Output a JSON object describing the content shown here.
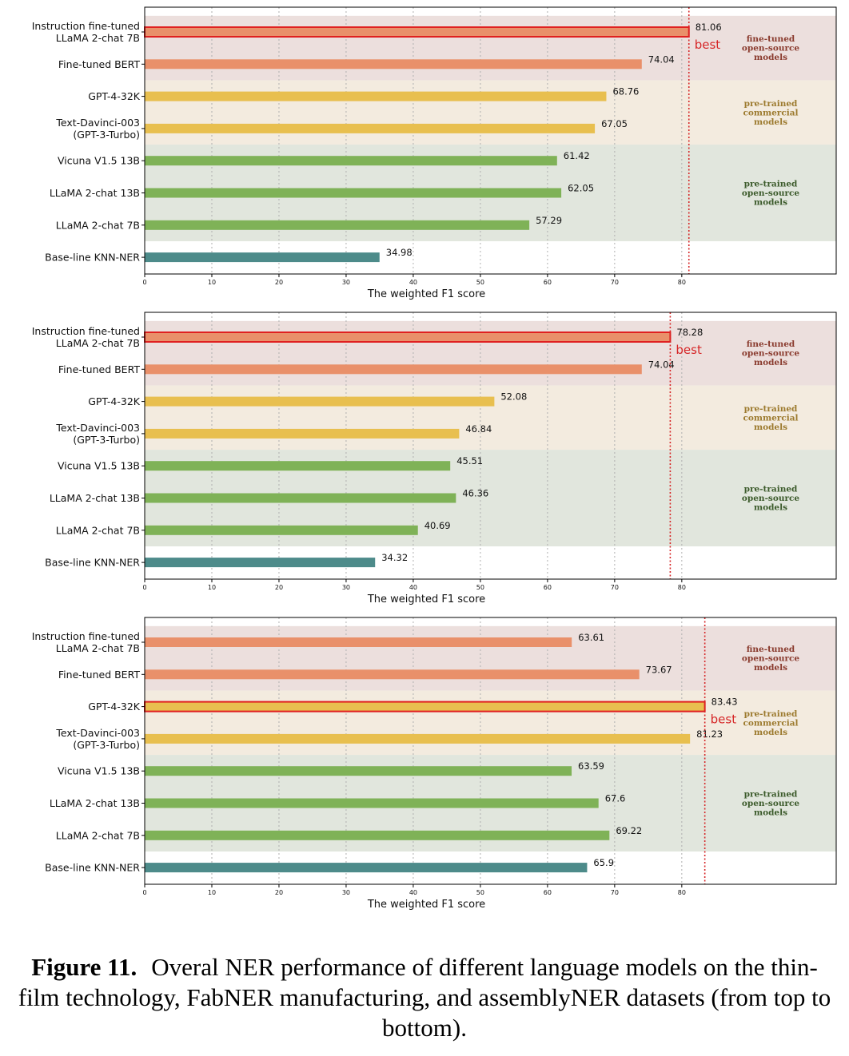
{
  "colors": {
    "fine_tuned": "#e9906a",
    "commercial": "#e8bf4f",
    "open_source": "#7fb257",
    "baseline": "#4d8b8a",
    "best_outline": "#e02020",
    "best_line": "#d62728",
    "band_fine_tuned": "#ecdfdd",
    "band_commercial": "#f3ebdf",
    "band_open_source": "#e1e6dd",
    "group_text_fine_tuned": "#8a3b2e",
    "group_text_commercial": "#9c7a2e",
    "group_text_open_source": "#3b5a2a"
  },
  "chart_data": [
    {
      "type": "bar",
      "orientation": "horizontal",
      "categories": [
        "Instruction fine-tuned\nLLaMA 2-chat 7B",
        "Fine-tuned BERT",
        "GPT-4-32K",
        "Text-Davinci-003\n(GPT-3-Turbo)",
        "Vicuna V1.5 13B",
        "LLaMA 2-chat 13B",
        "LLaMA 2-chat 7B",
        "Base-line KNN-NER"
      ],
      "groups": [
        "fine_tuned",
        "fine_tuned",
        "commercial",
        "commercial",
        "open_source",
        "open_source",
        "open_source",
        "baseline"
      ],
      "values": [
        81.06,
        74.04,
        68.76,
        67.05,
        61.42,
        62.05,
        57.29,
        34.98
      ],
      "value_labels": [
        "81.06",
        "74.04",
        "68.76",
        "67.05",
        "61.42",
        "62.05",
        "57.29",
        "34.98"
      ],
      "best_index": 0,
      "best_label": "best",
      "xlabel": "The weighted F1 score",
      "xlim": [
        0,
        103
      ],
      "xticks": [
        0,
        10,
        20,
        30,
        40,
        50,
        60,
        70,
        80
      ],
      "grid": "x-dotted",
      "group_labels": [
        {
          "group": "fine_tuned",
          "text": "fine-tuned\nopen-source\nmodels"
        },
        {
          "group": "commercial",
          "text": "pre-trained\ncommercial\nmodels"
        },
        {
          "group": "open_source",
          "text": "pre-trained\nopen-source\nmodels"
        }
      ]
    },
    {
      "type": "bar",
      "orientation": "horizontal",
      "categories": [
        "Instruction fine-tuned\nLLaMA 2-chat 7B",
        "Fine-tuned BERT",
        "GPT-4-32K",
        "Text-Davinci-003\n(GPT-3-Turbo)",
        "Vicuna V1.5 13B",
        "LLaMA 2-chat 13B",
        "LLaMA 2-chat 7B",
        "Base-line KNN-NER"
      ],
      "groups": [
        "fine_tuned",
        "fine_tuned",
        "commercial",
        "commercial",
        "open_source",
        "open_source",
        "open_source",
        "baseline"
      ],
      "values": [
        78.28,
        74.04,
        52.08,
        46.84,
        45.51,
        46.36,
        40.69,
        34.32
      ],
      "value_labels": [
        "78.28",
        "74.04",
        "52.08",
        "46.84",
        "45.51",
        "46.36",
        "40.69",
        "34.32"
      ],
      "best_index": 0,
      "best_label": "best",
      "xlabel": "The weighted F1 score",
      "xlim": [
        0,
        103
      ],
      "xticks": [
        0,
        10,
        20,
        30,
        40,
        50,
        60,
        70,
        80
      ],
      "grid": "x-dotted",
      "group_labels": [
        {
          "group": "fine_tuned",
          "text": "fine-tuned\nopen-source\nmodels"
        },
        {
          "group": "commercial",
          "text": "pre-trained\ncommercial\nmodels"
        },
        {
          "group": "open_source",
          "text": "pre-trained\nopen-source\nmodels"
        }
      ]
    },
    {
      "type": "bar",
      "orientation": "horizontal",
      "categories": [
        "Instruction fine-tuned\nLLaMA 2-chat 7B",
        "Fine-tuned BERT",
        "GPT-4-32K",
        "Text-Davinci-003\n(GPT-3-Turbo)",
        "Vicuna V1.5 13B",
        "LLaMA 2-chat 13B",
        "LLaMA 2-chat 7B",
        "Base-line KNN-NER"
      ],
      "groups": [
        "fine_tuned",
        "fine_tuned",
        "commercial",
        "commercial",
        "open_source",
        "open_source",
        "open_source",
        "baseline"
      ],
      "values": [
        63.61,
        73.67,
        83.43,
        81.23,
        63.59,
        67.6,
        69.22,
        65.9
      ],
      "value_labels": [
        "63.61",
        "73.67",
        "83.43",
        "81.23",
        "63.59",
        "67.6",
        "69.22",
        "65.9"
      ],
      "best_index": 2,
      "best_label": "best",
      "xlabel": "The weighted F1 score",
      "xlim": [
        0,
        103
      ],
      "xticks": [
        0,
        10,
        20,
        30,
        40,
        50,
        60,
        70,
        80
      ],
      "grid": "x-dotted",
      "group_labels": [
        {
          "group": "fine_tuned",
          "text": "fine-tuned\nopen-source\nmodels"
        },
        {
          "group": "commercial",
          "text": "pre-trained\ncommercial\nmodels"
        },
        {
          "group": "open_source",
          "text": "pre-trained\nopen-source\nmodels"
        }
      ]
    }
  ],
  "caption": {
    "label": "Figure 11.",
    "text": "Overal NER performance of different language models on the thin-film technology, FabNER manufacturing, and assemblyNER datasets (from top to bottom)."
  }
}
